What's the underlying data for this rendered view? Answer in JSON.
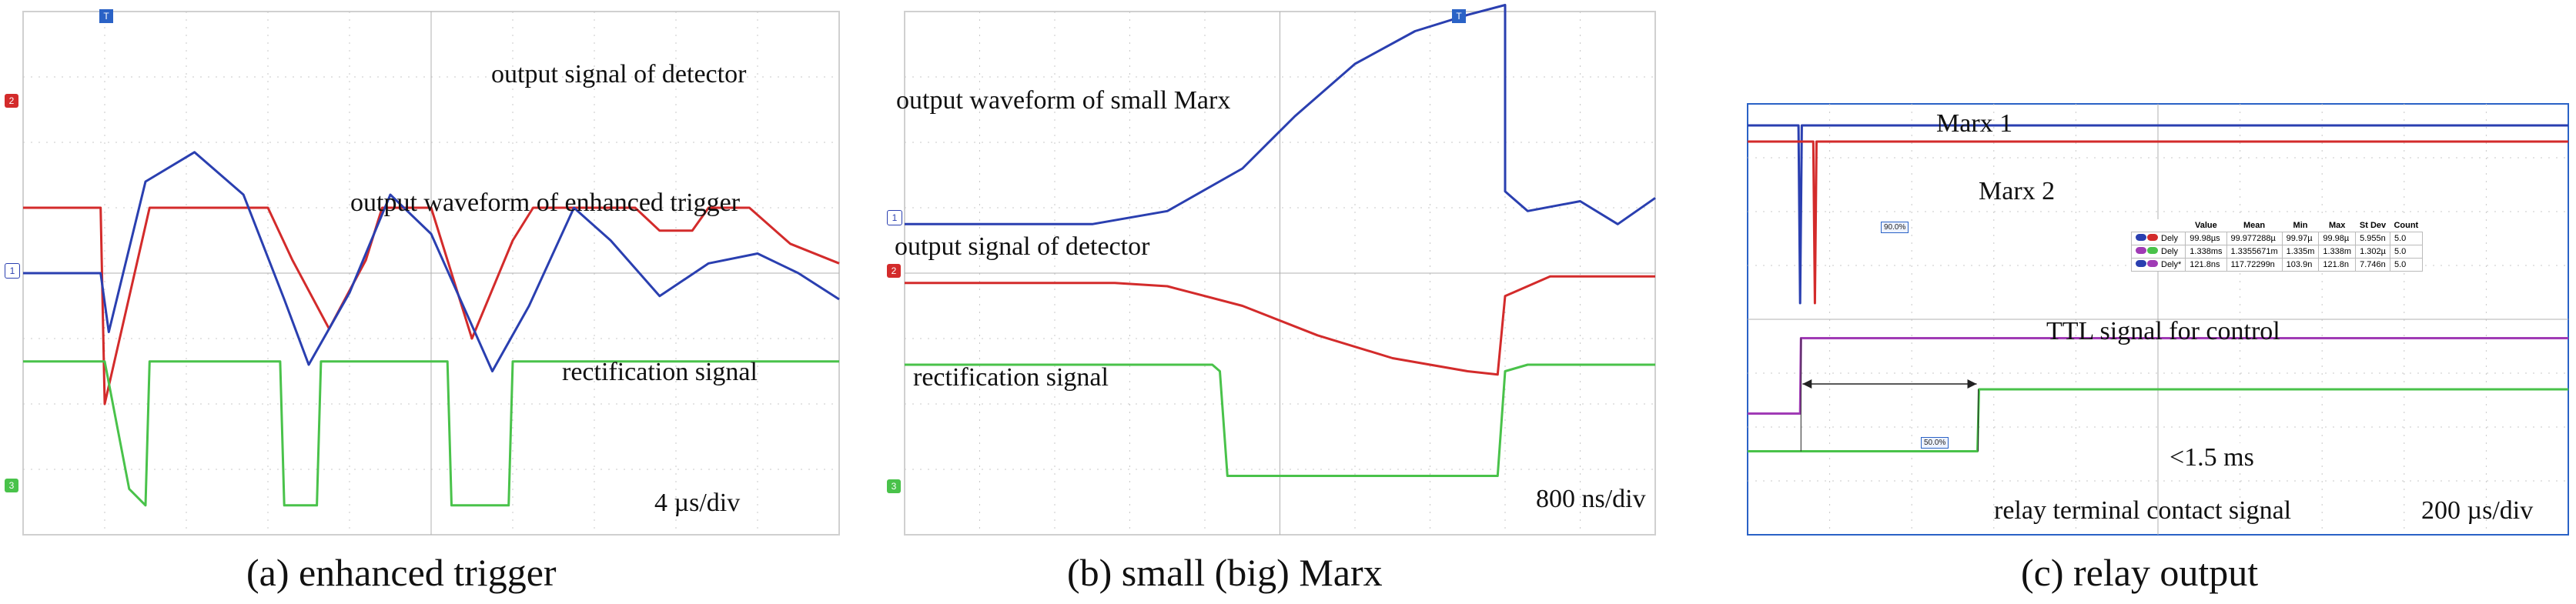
{
  "chart_data": [
    {
      "type": "line",
      "panel": "a",
      "caption": "(a) enhanced trigger",
      "scale": "4 µs/div",
      "grid": true,
      "x_divisions": 10,
      "y_divisions": 8,
      "channel_markers": [
        "2",
        "1",
        "3"
      ],
      "annotations": [
        "output signal of detector",
        "output waveform of enhanced trigger",
        "rectification signal"
      ],
      "series": [
        {
          "name": "output signal of detector",
          "color": "#d32b2b",
          "x": [
            0,
            0.95,
            1.0,
            1.55,
            1.8,
            3.0,
            3.3,
            3.75,
            4.2,
            4.4,
            5.0,
            5.5,
            6.0,
            6.25,
            7.5,
            7.8,
            8.2,
            8.4,
            8.9,
            9.4,
            10.0
          ],
          "y": [
            1.0,
            1.0,
            -2.0,
            1.0,
            1.0,
            1.0,
            0.2,
            -0.85,
            0.2,
            1.0,
            1.0,
            -1.0,
            0.5,
            1.0,
            1.0,
            0.65,
            0.65,
            1.0,
            1.0,
            0.45,
            0.15
          ]
        },
        {
          "name": "output waveform of enhanced trigger",
          "color": "#2a3fb0",
          "x": [
            0,
            0.95,
            1.05,
            1.5,
            2.1,
            2.7,
            3.2,
            3.5,
            4.0,
            4.5,
            5.0,
            5.5,
            5.75,
            6.2,
            6.75,
            7.2,
            7.8,
            8.4,
            9.0,
            9.5,
            10.0
          ],
          "y": [
            0,
            0,
            -0.9,
            1.4,
            1.85,
            1.2,
            -0.4,
            -1.4,
            -0.3,
            1.2,
            0.6,
            -0.8,
            -1.5,
            -0.5,
            1.0,
            0.5,
            -0.35,
            0.15,
            0.3,
            0.0,
            -0.4
          ]
        },
        {
          "name": "rectification signal",
          "color": "#49c24a",
          "x": [
            0,
            0.95,
            1.0,
            1.3,
            1.5,
            1.55,
            3.15,
            3.2,
            3.6,
            3.65,
            5.2,
            5.25,
            5.95,
            6.0,
            10.0
          ],
          "y": [
            -1.35,
            -1.35,
            -1.35,
            -3.3,
            -3.55,
            -1.35,
            -1.35,
            -3.55,
            -3.55,
            -1.35,
            -1.35,
            -3.55,
            -3.55,
            -1.35,
            -1.35
          ]
        }
      ]
    },
    {
      "type": "line",
      "panel": "b",
      "caption": "(b) small (big) Marx",
      "scale": "800 ns/div",
      "grid": true,
      "x_divisions": 10,
      "y_divisions": 8,
      "channel_markers": [
        "1",
        "2",
        "3"
      ],
      "annotations": [
        "output waveform of small Marx",
        "output signal of detector",
        "rectification signal"
      ],
      "series": [
        {
          "name": "output waveform of small Marx",
          "color": "#2a3fb0",
          "x": [
            0,
            2.5,
            3.5,
            4.5,
            5.2,
            6.0,
            6.8,
            7.5,
            8.0,
            8.0,
            8.3,
            9.0,
            9.5,
            10.0
          ],
          "y": [
            0.75,
            0.75,
            0.95,
            1.6,
            2.4,
            3.2,
            3.7,
            3.95,
            4.1,
            1.25,
            0.95,
            1.1,
            0.75,
            1.15
          ]
        },
        {
          "name": "output signal of detector",
          "color": "#d32b2b",
          "x": [
            0,
            2.8,
            3.5,
            4.5,
            5.5,
            6.5,
            7.5,
            7.9,
            8.0,
            8.3,
            8.6,
            10.0
          ],
          "y": [
            -0.15,
            -0.15,
            -0.2,
            -0.5,
            -0.95,
            -1.3,
            -1.5,
            -1.55,
            -0.35,
            -0.2,
            -0.05,
            -0.05
          ]
        },
        {
          "name": "rectification signal",
          "color": "#49c24a",
          "x": [
            0,
            4.1,
            4.2,
            4.3,
            7.9,
            8.0,
            8.3,
            10.0
          ],
          "y": [
            -1.4,
            -1.4,
            -1.5,
            -3.1,
            -3.1,
            -1.5,
            -1.4,
            -1.4
          ]
        }
      ]
    },
    {
      "type": "line",
      "panel": "c",
      "caption": "(c) relay output",
      "scale": "200 µs/div",
      "grid": true,
      "x_divisions": 10,
      "y_divisions": 8,
      "annotations": [
        "Marx 1",
        "Marx 2",
        "TTL signal for control",
        "<1.5 ms",
        "relay terminal contact signal"
      ],
      "markers_pct": [
        "90.0%",
        "50.0%"
      ],
      "series": [
        {
          "name": "Marx 1",
          "color": "#2a3fb0",
          "x": [
            0,
            0.62,
            0.64,
            0.66,
            10.0
          ],
          "y": [
            3.6,
            3.6,
            0.3,
            3.6,
            3.6
          ]
        },
        {
          "name": "Marx 2",
          "color": "#d32b2b",
          "x": [
            0,
            0.8,
            0.82,
            0.84,
            10.0
          ],
          "y": [
            3.3,
            3.3,
            0.3,
            3.3,
            3.3
          ]
        },
        {
          "name": "TTL signal for control",
          "color": "#a03bb5",
          "x": [
            0,
            0.64,
            0.65,
            10.0
          ],
          "y": [
            -1.75,
            -1.75,
            -0.35,
            -0.35
          ]
        },
        {
          "name": "relay terminal contact signal",
          "color": "#49c24a",
          "x": [
            0,
            2.8,
            2.82,
            10.0
          ],
          "y": [
            -2.45,
            -2.45,
            -1.3,
            -1.3
          ]
        }
      ],
      "stats_table": {
        "headers": [
          "",
          "Value",
          "Mean",
          "Min",
          "Max",
          "St Dev",
          "Count"
        ],
        "rows": [
          [
            "Dely",
            "99.98µs",
            "99.977288µ",
            "99.97µ",
            "99.98µ",
            "5.955n",
            "5.0"
          ],
          [
            "Dely",
            "1.338ms",
            "1.3355671m",
            "1.335m",
            "1.338m",
            "1.302µ",
            "5.0"
          ],
          [
            "Dely*",
            "121.8ns",
            "117.72299n",
            "103.9n",
            "121.8n",
            "7.746n",
            "5.0"
          ]
        ]
      }
    }
  ],
  "colors": {
    "red": "#d32b2b",
    "blue": "#2a3fb0",
    "green": "#49c24a",
    "purple": "#a03bb5",
    "grid": "#c8c8c8",
    "frame_c": "#2a62c6"
  }
}
